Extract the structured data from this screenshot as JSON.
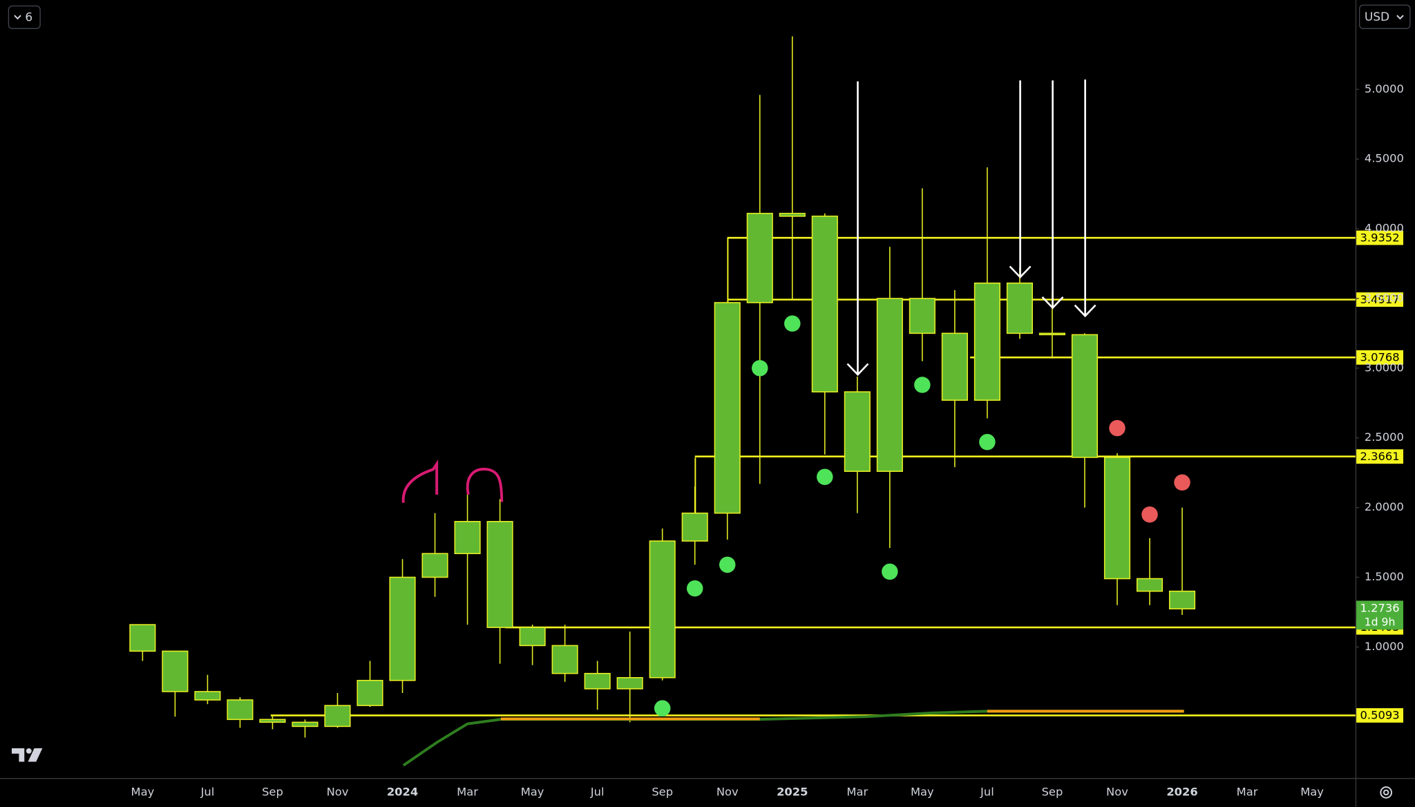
{
  "chart_data": {
    "type": "candlestick",
    "categories": [
      "May",
      null,
      "Jul",
      null,
      "Sep",
      null,
      "Nov",
      null,
      "2024",
      null,
      "Mar",
      null,
      "May",
      null,
      "Jul",
      null,
      "Sep",
      null,
      "Nov",
      null,
      "2025",
      null,
      "Mar",
      null,
      "May",
      null,
      "Jul",
      null,
      "Sep",
      null,
      "Nov",
      null,
      "2026",
      null,
      "Mar",
      null,
      "May"
    ],
    "open": [
      1.16,
      0.97,
      0.68,
      0.62,
      0.48,
      0.46,
      0.43,
      0.58,
      0.76,
      1.5,
      1.67,
      1.9,
      1.14,
      1.01,
      0.81,
      0.7,
      0.78,
      1.76,
      1.96,
      3.47,
      4.11,
      4.09,
      2.83,
      2.26,
      3.5,
      3.25,
      2.77,
      3.61,
      3.25,
      3.24,
      2.36,
      1.49,
      1.4,
      null,
      null,
      null,
      null
    ],
    "high": [
      1.16,
      0.97,
      0.8,
      0.64,
      0.51,
      0.48,
      0.67,
      0.9,
      1.63,
      1.96,
      2.15,
      2.06,
      1.16,
      1.16,
      0.9,
      1.11,
      1.85,
      2.15,
      3.47,
      4.96,
      5.38,
      4.11,
      2.94,
      3.87,
      4.29,
      3.56,
      4.44,
      3.72,
      3.55,
      3.25,
      2.39,
      1.78,
      2.0,
      null,
      null,
      null,
      null
    ],
    "low": [
      0.9,
      0.5,
      0.59,
      0.42,
      0.41,
      0.35,
      0.42,
      0.57,
      0.67,
      1.36,
      1.16,
      0.88,
      0.87,
      0.75,
      0.55,
      0.46,
      0.76,
      1.59,
      1.77,
      2.17,
      3.49,
      2.38,
      1.96,
      1.71,
      3.05,
      2.29,
      2.64,
      3.21,
      3.07,
      2.0,
      1.3,
      1.3,
      1.23,
      null,
      null,
      null,
      null
    ],
    "close": [
      0.97,
      0.68,
      0.62,
      0.48,
      0.46,
      0.43,
      0.58,
      0.76,
      1.5,
      1.67,
      1.9,
      1.14,
      1.01,
      0.81,
      0.7,
      0.78,
      1.76,
      1.96,
      3.47,
      4.11,
      4.09,
      2.83,
      2.26,
      3.5,
      3.25,
      2.77,
      3.61,
      3.25,
      3.24,
      2.36,
      1.49,
      1.4,
      1.2736,
      null,
      null,
      null,
      null
    ],
    "candle_color": "#63b832",
    "candle_border": "#e6ee22",
    "marker_values": [
      null,
      null,
      null,
      null,
      null,
      null,
      null,
      null,
      null,
      null,
      null,
      null,
      null,
      null,
      null,
      null,
      0.56,
      1.42,
      1.59,
      3.0,
      3.32,
      2.22,
      null,
      1.54,
      2.88,
      null,
      2.47,
      null,
      null,
      null,
      2.57,
      1.95,
      2.18,
      null,
      null,
      null,
      null
    ],
    "marker_colors": [
      null,
      null,
      null,
      null,
      null,
      null,
      null,
      null,
      null,
      null,
      null,
      null,
      null,
      null,
      null,
      null,
      "#4fe35a",
      "#4fe35a",
      "#4fe35a",
      "#4fe35a",
      "#4fe35a",
      "#4fe35a",
      null,
      "#4fe35a",
      "#4fe35a",
      null,
      "#4fe35a",
      null,
      null,
      null,
      "#ea5a5a",
      "#ea5a5a",
      "#ea5a5a",
      null,
      null,
      null,
      null
    ],
    "hlines": [
      3.9352,
      3.4917,
      3.0768,
      2.3661,
      1.1403,
      0.5093
    ],
    "hline_color": "#f4f41f",
    "last_price": 1.2736,
    "countdown": "1d 9h",
    "last_price_color": "#4caf3a",
    "ylim": [
      0.06,
      5.64
    ],
    "yticks": [
      {
        "value": 1,
        "label": "1.0000"
      },
      {
        "value": 1.5,
        "label": "1.5000"
      },
      {
        "value": 2,
        "label": "2.0000"
      },
      {
        "value": 2.5,
        "label": "2.5000"
      },
      {
        "value": 3,
        "label": "3.0000"
      },
      {
        "value": 3.5,
        "label": "3.5000"
      },
      {
        "value": 4,
        "label": "4.0000"
      },
      {
        "value": 4.5,
        "label": "4.5000"
      },
      {
        "value": 5,
        "label": "5.0000"
      }
    ],
    "grid": false
  },
  "ui": {
    "interval": "6",
    "currency": "USD"
  }
}
